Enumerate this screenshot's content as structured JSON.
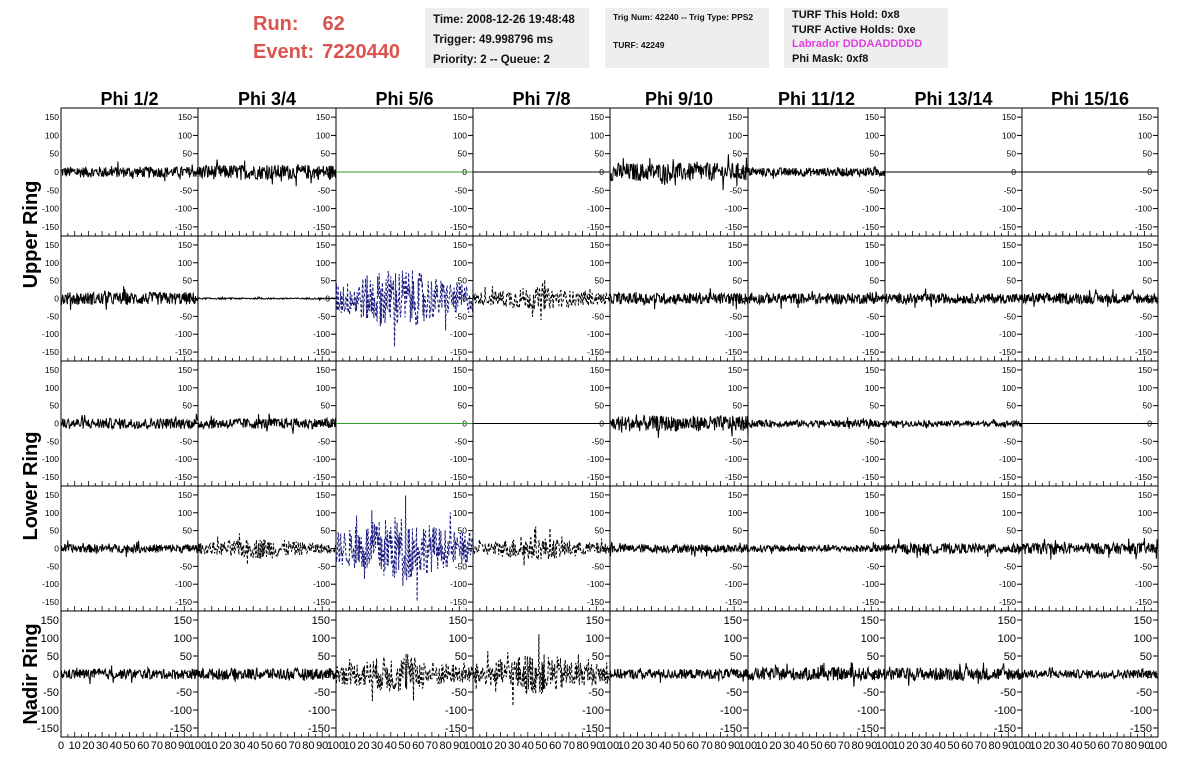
{
  "header": {
    "run_label": "Run:",
    "run_value": "62",
    "event_label": "Event:",
    "event_value": "7220440",
    "time": "Time: 2008-12-26 19:48:48",
    "trigger": "Trigger: 49.998796 ms",
    "priority": "Priority: 2 -- Queue: 2",
    "trig_num": "Trig Num: 42240 -- Trig Type: PPS2",
    "turf": "TURF: 42249",
    "turf_hold": "TURF This Hold: 0x8",
    "turf_active": "TURF Active Holds: 0xe",
    "labrador": "Labrador DDDAADDDDD",
    "phi_mask": "Phi Mask: 0xf8"
  },
  "colors": {
    "run_text": "#d9534f",
    "labrador_text": "#e040e0",
    "trace_black": "#000000",
    "trace_blue": "#1a1a80",
    "trace_green": "#2e9e2e"
  },
  "chart_data": {
    "type": "line",
    "columns": [
      "Phi 1/2",
      "Phi 3/4",
      "Phi 5/6",
      "Phi 7/8",
      "Phi 9/10",
      "Phi 11/12",
      "Phi 13/14",
      "Phi 15/16"
    ],
    "row_groups": [
      {
        "label": "Upper Ring",
        "rows": [
          0,
          1
        ]
      },
      {
        "label": "Lower Ring",
        "rows": [
          2,
          3
        ]
      },
      {
        "label": "Nadir Ring",
        "rows": [
          4
        ]
      }
    ],
    "ylim": [
      -175,
      175
    ],
    "yticks": [
      -150,
      -100,
      -50,
      0,
      50,
      100,
      150
    ],
    "nadir_ylim": [
      -175,
      175
    ],
    "nadir_yticks": [
      -150,
      -100,
      -50,
      0,
      50,
      100,
      150
    ],
    "xlim": [
      0,
      100
    ],
    "xticks": [
      0,
      10,
      20,
      30,
      40,
      50,
      60,
      70,
      80,
      90,
      100
    ],
    "grid": false,
    "panels": [
      [
        {
          "style": "solid",
          "color": "black",
          "amp": 15
        },
        {
          "style": "solid",
          "color": "black",
          "amp": 20
        },
        {
          "style": "flat",
          "color": "green",
          "amp": 0
        },
        {
          "style": "flat",
          "color": "black",
          "amp": 0
        },
        {
          "style": "solid",
          "color": "black",
          "amp": 25
        },
        {
          "style": "solid",
          "color": "black",
          "amp": 12
        },
        {
          "style": "flat",
          "color": "black",
          "amp": 0
        },
        {
          "style": "flat",
          "color": "black",
          "amp": 0
        }
      ],
      [
        {
          "style": "solid",
          "color": "black",
          "amp": 18
        },
        {
          "style": "solid",
          "color": "black",
          "amp": 2
        },
        {
          "style": "dashed",
          "color": "blue",
          "amp": 75
        },
        {
          "style": "dashed",
          "color": "black",
          "amp": 28
        },
        {
          "style": "solid",
          "color": "black",
          "amp": 16
        },
        {
          "style": "solid",
          "color": "black",
          "amp": 15
        },
        {
          "style": "solid",
          "color": "black",
          "amp": 14
        },
        {
          "style": "solid",
          "color": "black",
          "amp": 15
        }
      ],
      [
        {
          "style": "solid",
          "color": "black",
          "amp": 15
        },
        {
          "style": "solid",
          "color": "black",
          "amp": 15
        },
        {
          "style": "flat",
          "color": "green",
          "amp": 0
        },
        {
          "style": "flat",
          "color": "black",
          "amp": 0
        },
        {
          "style": "solid",
          "color": "black",
          "amp": 22
        },
        {
          "style": "solid",
          "color": "black",
          "amp": 10
        },
        {
          "style": "solid",
          "color": "black",
          "amp": 8
        },
        {
          "style": "flat",
          "color": "black",
          "amp": 0
        }
      ],
      [
        {
          "style": "solid",
          "color": "black",
          "amp": 12
        },
        {
          "style": "dashed",
          "color": "black",
          "amp": 25
        },
        {
          "style": "dashed",
          "color": "blue",
          "amp": 80
        },
        {
          "style": "dashed",
          "color": "black",
          "amp": 28
        },
        {
          "style": "solid",
          "color": "black",
          "amp": 12
        },
        {
          "style": "solid",
          "color": "black",
          "amp": 10
        },
        {
          "style": "solid",
          "color": "black",
          "amp": 14
        },
        {
          "style": "solid",
          "color": "black",
          "amp": 16
        }
      ],
      [
        {
          "style": "solid",
          "color": "black",
          "amp": 14
        },
        {
          "style": "solid",
          "color": "black",
          "amp": 16
        },
        {
          "style": "dashed",
          "color": "black",
          "amp": 45
        },
        {
          "style": "dashed",
          "color": "black",
          "amp": 50
        },
        {
          "style": "solid",
          "color": "black",
          "amp": 14
        },
        {
          "style": "solid",
          "color": "black",
          "amp": 18
        },
        {
          "style": "solid",
          "color": "black",
          "amp": 18
        },
        {
          "style": "solid",
          "color": "black",
          "amp": 12
        }
      ]
    ]
  }
}
